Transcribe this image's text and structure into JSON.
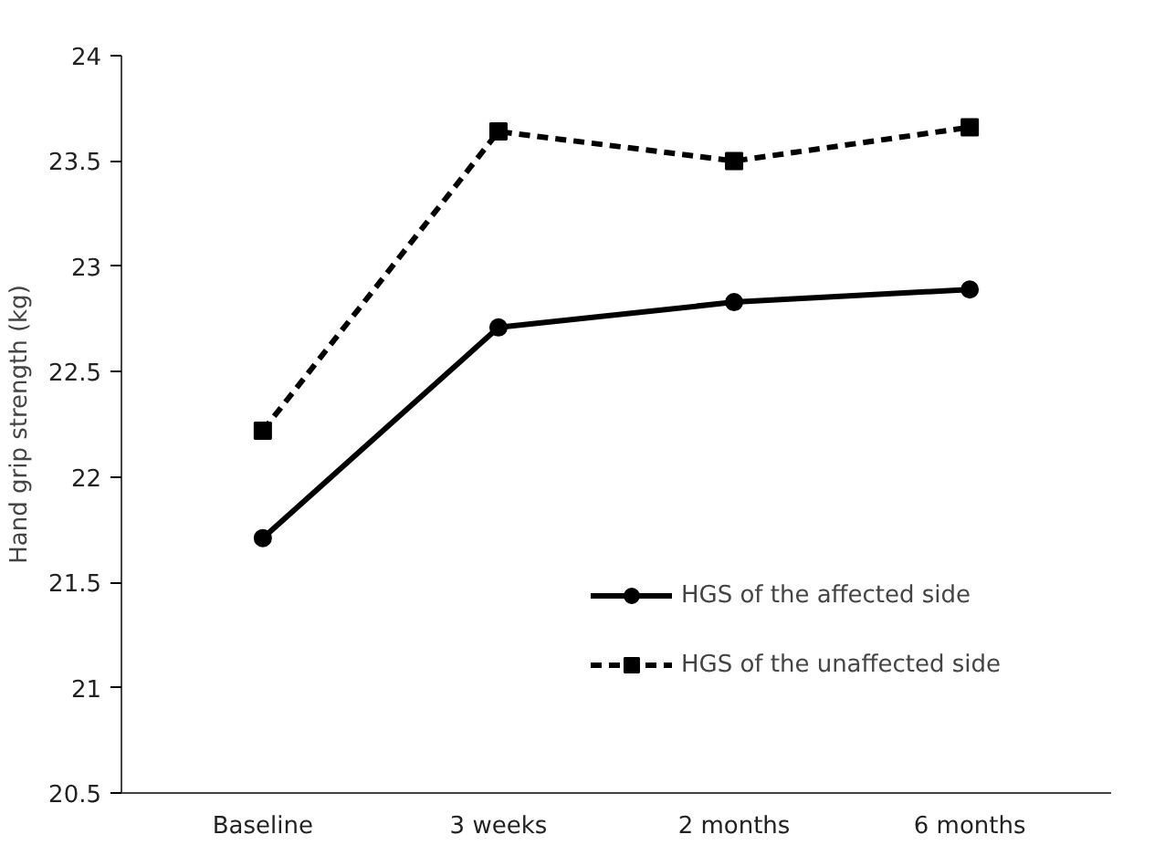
{
  "chart_data": {
    "type": "line",
    "ylabel": "Hand grip strength (kg)",
    "categories": [
      "Baseline",
      "3 weeks",
      "2 months",
      "6 months"
    ],
    "series": [
      {
        "name": "HGS of the affected side",
        "color": "#000000",
        "values": [
          21.71,
          22.71,
          22.83,
          22.89
        ],
        "marker": "circle",
        "line_style": "solid"
      },
      {
        "name": "HGS of the unaffected side",
        "color": "#000000",
        "values": [
          22.22,
          23.64,
          23.5,
          23.66
        ],
        "marker": "square",
        "line_style": "dashed"
      }
    ],
    "ylim": [
      20.5,
      24
    ],
    "yticks": [
      20.5,
      21,
      21.5,
      22,
      22.5,
      23,
      23.5,
      24
    ],
    "grid": false,
    "legend": "bottom right"
  }
}
